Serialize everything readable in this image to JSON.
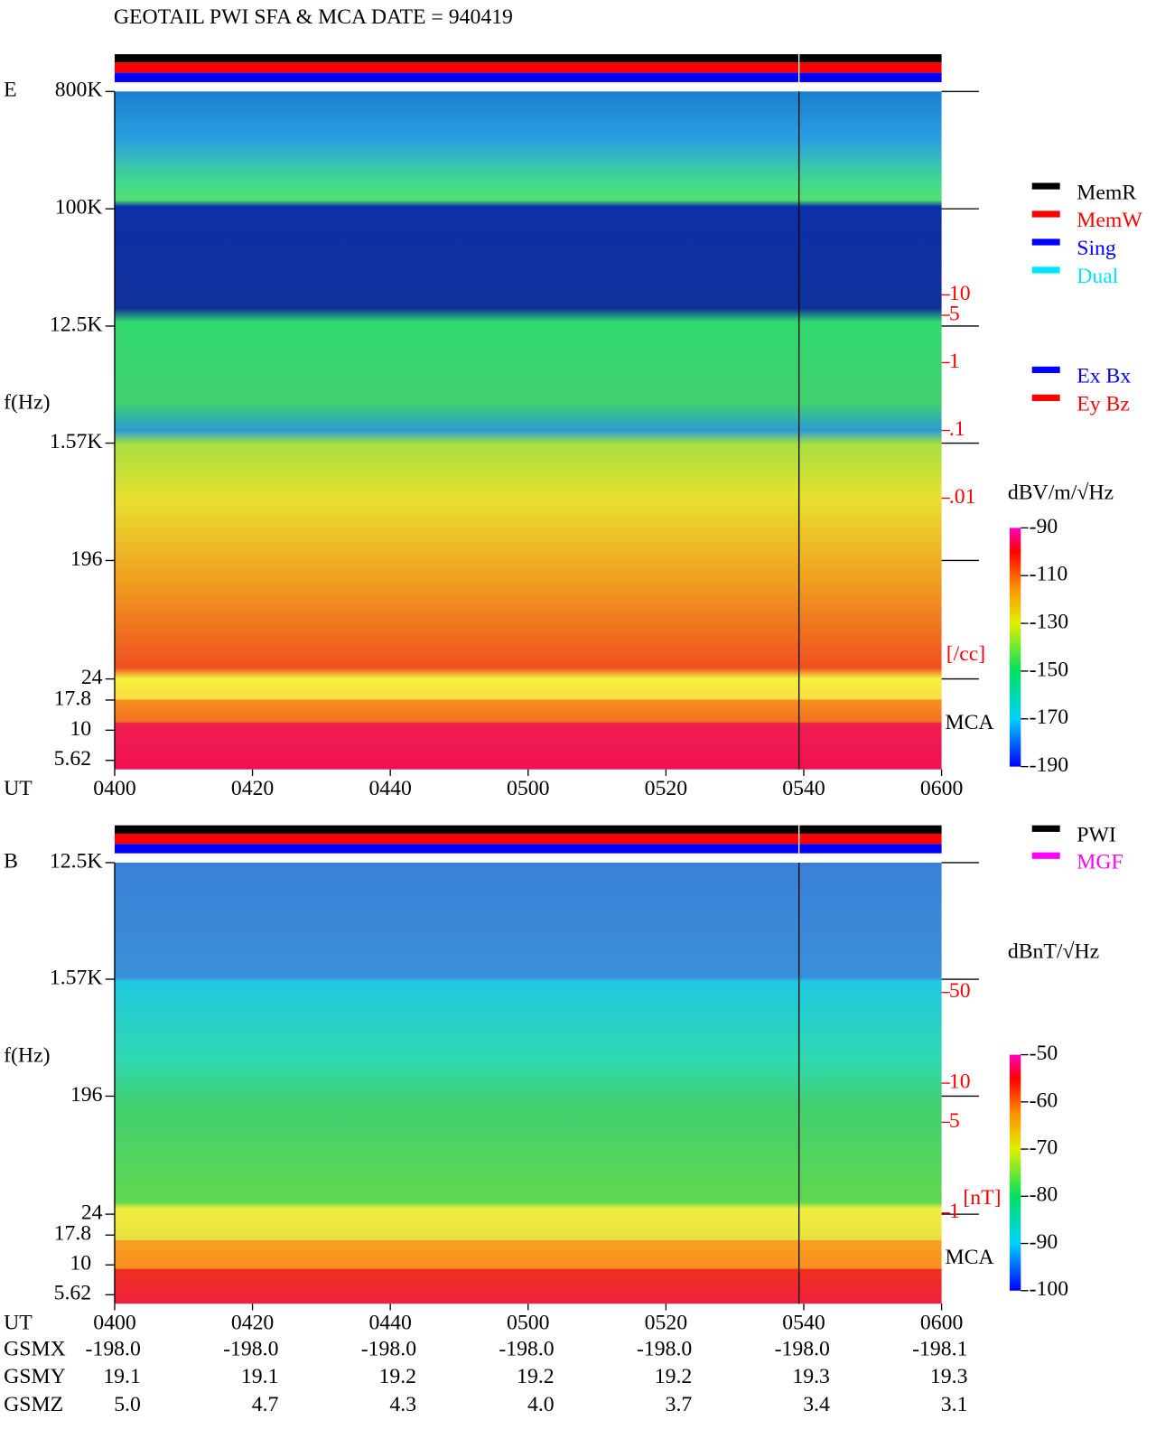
{
  "title": "GEOTAIL  PWI SFA & MCA   DATE = 940419",
  "chart_data": [
    {
      "type": "spectrogram",
      "panel_label": "E",
      "ylabel": "f(Hz)",
      "xlabel": "UT",
      "log": true,
      "ylim": [
        24,
        800000
      ],
      "yticks": [
        {
          "value": 800000,
          "label": "800K"
        },
        {
          "value": 100000,
          "label": "100K"
        },
        {
          "value": 12500,
          "label": "12.5K"
        },
        {
          "value": 1570,
          "label": "1.57K"
        },
        196,
        24
      ],
      "mca_label": "MCA",
      "mca_ticks": [
        17.8,
        10,
        5.62
      ],
      "xticks": [
        "0400",
        "0420",
        "0440",
        "0500",
        "0520",
        "0540",
        "0600"
      ],
      "y2lim": [
        1e-06,
        10000
      ],
      "y2log": true,
      "y2color": "#ff0000",
      "y2ticks": [
        10,
        5,
        1,
        {
          "value": 0.1,
          "label": ".1"
        },
        {
          "value": 0.01,
          "label": ".01"
        }
      ],
      "y2_unit": "[/cc]",
      "colorbar": {
        "label": "dBV/m/√Hz",
        "lim": [
          -190,
          -90
        ],
        "ticks": [
          -90,
          -110,
          -130,
          -150,
          -170,
          -190
        ]
      },
      "legend": [
        [
          {
            "name": "MemR",
            "color": "#000000"
          },
          {
            "name": "MemW",
            "color": "#ff0000"
          },
          {
            "name": "Sing",
            "color": "#0000ff"
          },
          {
            "name": "Dual",
            "color": "#00e5ff"
          }
        ],
        [
          {
            "name": "Ex Bx",
            "color": "#0000ff"
          },
          {
            "name": "Ey Bz",
            "color": "#ff0000"
          }
        ]
      ]
    },
    {
      "type": "spectrogram",
      "panel_label": "B",
      "ylabel": "f(Hz)",
      "xlabel": "UT",
      "log": true,
      "ylim": [
        24,
        12500
      ],
      "yticks": [
        {
          "value": 12500,
          "label": "12.5K"
        },
        {
          "value": 1570,
          "label": "1.57K"
        },
        196,
        24
      ],
      "mca_label": "MCA",
      "mca_ticks": [
        17.8,
        10,
        5.62
      ],
      "xticks": [
        "0400",
        "0420",
        "0440",
        "0500",
        "0520",
        "0540",
        "0600"
      ],
      "y2lim": [
        0.2,
        500
      ],
      "y2log": true,
      "y2color": "#ff0000",
      "y2ticks": [
        50,
        10,
        5,
        1
      ],
      "y2_unit": "[nT]",
      "colorbar": {
        "label": "dBnT/√Hz",
        "lim": [
          -100,
          -50
        ],
        "ticks": [
          -50,
          -60,
          -70,
          -80,
          -90,
          -100
        ]
      },
      "legend": [
        [
          {
            "name": "PWI",
            "color": "#000000"
          },
          {
            "name": "MGF",
            "color": "#ff00ff"
          }
        ]
      ]
    }
  ],
  "orbit": {
    "rows": [
      [
        "GSMX",
        "-198.0",
        "-198.0",
        "-198.0",
        "-198.0",
        "-198.0",
        "-198.0",
        "-198.1"
      ],
      [
        "GSMY",
        "19.1",
        "19.1",
        "19.2",
        "19.2",
        "19.2",
        "19.3",
        "19.3"
      ],
      [
        "GSMZ",
        "5.0",
        "4.7",
        "4.3",
        "4.0",
        "3.7",
        "3.4",
        "3.1"
      ]
    ]
  }
}
